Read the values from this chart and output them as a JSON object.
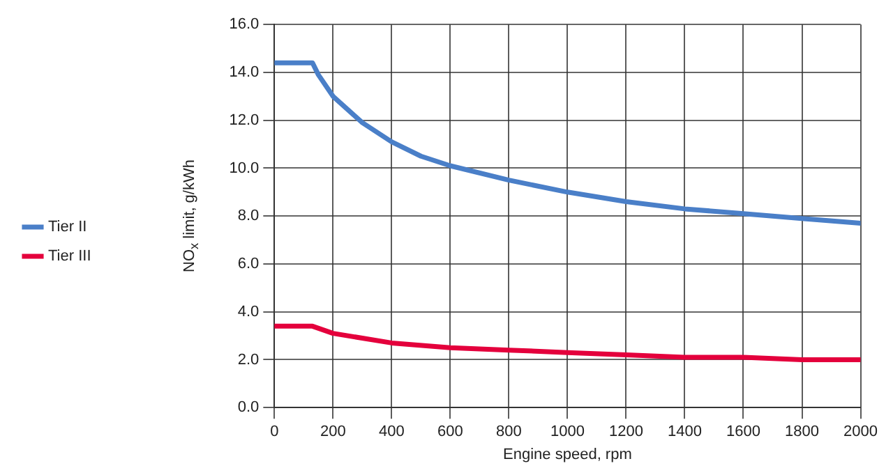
{
  "chart_data": {
    "type": "line",
    "xlabel": "Engine speed, rpm",
    "ylabel": "NO$_{x}$ limit, g/kWh",
    "xlim": [
      0,
      2000
    ],
    "xticks": [
      0,
      200,
      400,
      600,
      800,
      1000,
      1200,
      1400,
      1600,
      1800,
      2000
    ],
    "ylim": [
      0,
      16
    ],
    "yticks": [
      {
        "value": 0,
        "label": "0.0"
      },
      {
        "value": 2,
        "label": "2.0"
      },
      {
        "value": 4,
        "label": "4.0"
      },
      {
        "value": 6,
        "label": "6.0"
      },
      {
        "value": 8,
        "label": "8.0"
      },
      {
        "value": 10,
        "label": "10.0"
      },
      {
        "value": 12,
        "label": "12.0"
      },
      {
        "value": 14,
        "label": "14.0"
      },
      {
        "value": 16,
        "label": "16.0"
      }
    ],
    "grid": true,
    "legend": "left",
    "marker": "none",
    "line_style": "solid",
    "series": [
      {
        "name": "Tier II",
        "color": "#4a7fc8",
        "x": [
          0,
          130,
          150,
          200,
          300,
          400,
          500,
          600,
          800,
          1000,
          1200,
          1400,
          1600,
          1800,
          2000
        ],
        "values": [
          14.4,
          14.4,
          13.9,
          13.0,
          11.9,
          11.1,
          10.5,
          10.1,
          9.5,
          9.0,
          8.6,
          8.3,
          8.1,
          7.9,
          7.7
        ]
      },
      {
        "name": "Tier III",
        "color": "#e4003c",
        "x": [
          0,
          130,
          200,
          300,
          400,
          600,
          800,
          1000,
          1200,
          1400,
          1600,
          1800,
          2000
        ],
        "values": [
          3.4,
          3.4,
          3.1,
          2.9,
          2.7,
          2.5,
          2.4,
          2.3,
          2.2,
          2.1,
          2.1,
          2.0,
          2.0
        ]
      }
    ]
  }
}
